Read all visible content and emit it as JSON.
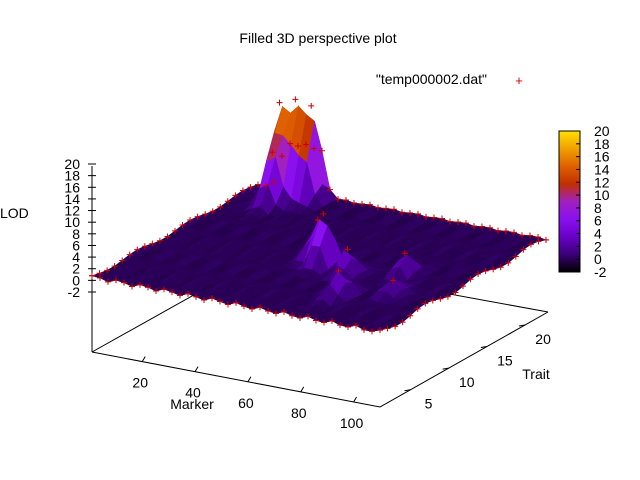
{
  "chart_data": {
    "type": "surface3d",
    "title": "Filled 3D perspective plot",
    "legend": {
      "label": "\"temp000002.dat\"",
      "marker": "+",
      "marker_color": "#d00000",
      "position": "top-right"
    },
    "xlabel": "Marker",
    "ylabel": "Trait",
    "zlabel": "LOD",
    "x_ticks": [
      "20",
      "40",
      "60",
      "80",
      "100"
    ],
    "y_ticks": [
      "5",
      "10",
      "15",
      "20"
    ],
    "z_ticks": [
      "-2",
      "0",
      "2",
      "4",
      "6",
      "8",
      "10",
      "12",
      "14",
      "16",
      "18",
      "20"
    ],
    "xlim": [
      1,
      110
    ],
    "ylim": [
      1,
      23
    ],
    "zlim": [
      -2,
      20
    ],
    "colorbar": {
      "ticks": [
        "20",
        "18",
        "16",
        "14",
        "12",
        "10",
        "8",
        "6",
        "4",
        "2",
        "0",
        "-2"
      ],
      "range": [
        -2,
        20
      ],
      "palette": [
        "#000000",
        "#3a0078",
        "#6a00c8",
        "#8a10f0",
        "#a020c0",
        "#c03000",
        "#e06000",
        "#f0a000",
        "#ffe000"
      ]
    },
    "peaks": [
      {
        "x": 12,
        "y": 22,
        "lod": 16.5
      },
      {
        "x": 18,
        "y": 22,
        "lod": 17.5
      },
      {
        "x": 24,
        "y": 22,
        "lod": 18
      },
      {
        "x": 15,
        "y": 20,
        "lod": 9
      },
      {
        "x": 55,
        "y": 12,
        "lod": 7
      },
      {
        "x": 60,
        "y": 11,
        "lod": 9
      },
      {
        "x": 72,
        "y": 10,
        "lod": 5
      },
      {
        "x": 88,
        "y": 12,
        "lod": 4
      },
      {
        "x": 80,
        "y": 6,
        "lod": 5
      },
      {
        "x": 95,
        "y": 8,
        "lod": 3
      }
    ],
    "base_lod": 0,
    "grid": false
  }
}
